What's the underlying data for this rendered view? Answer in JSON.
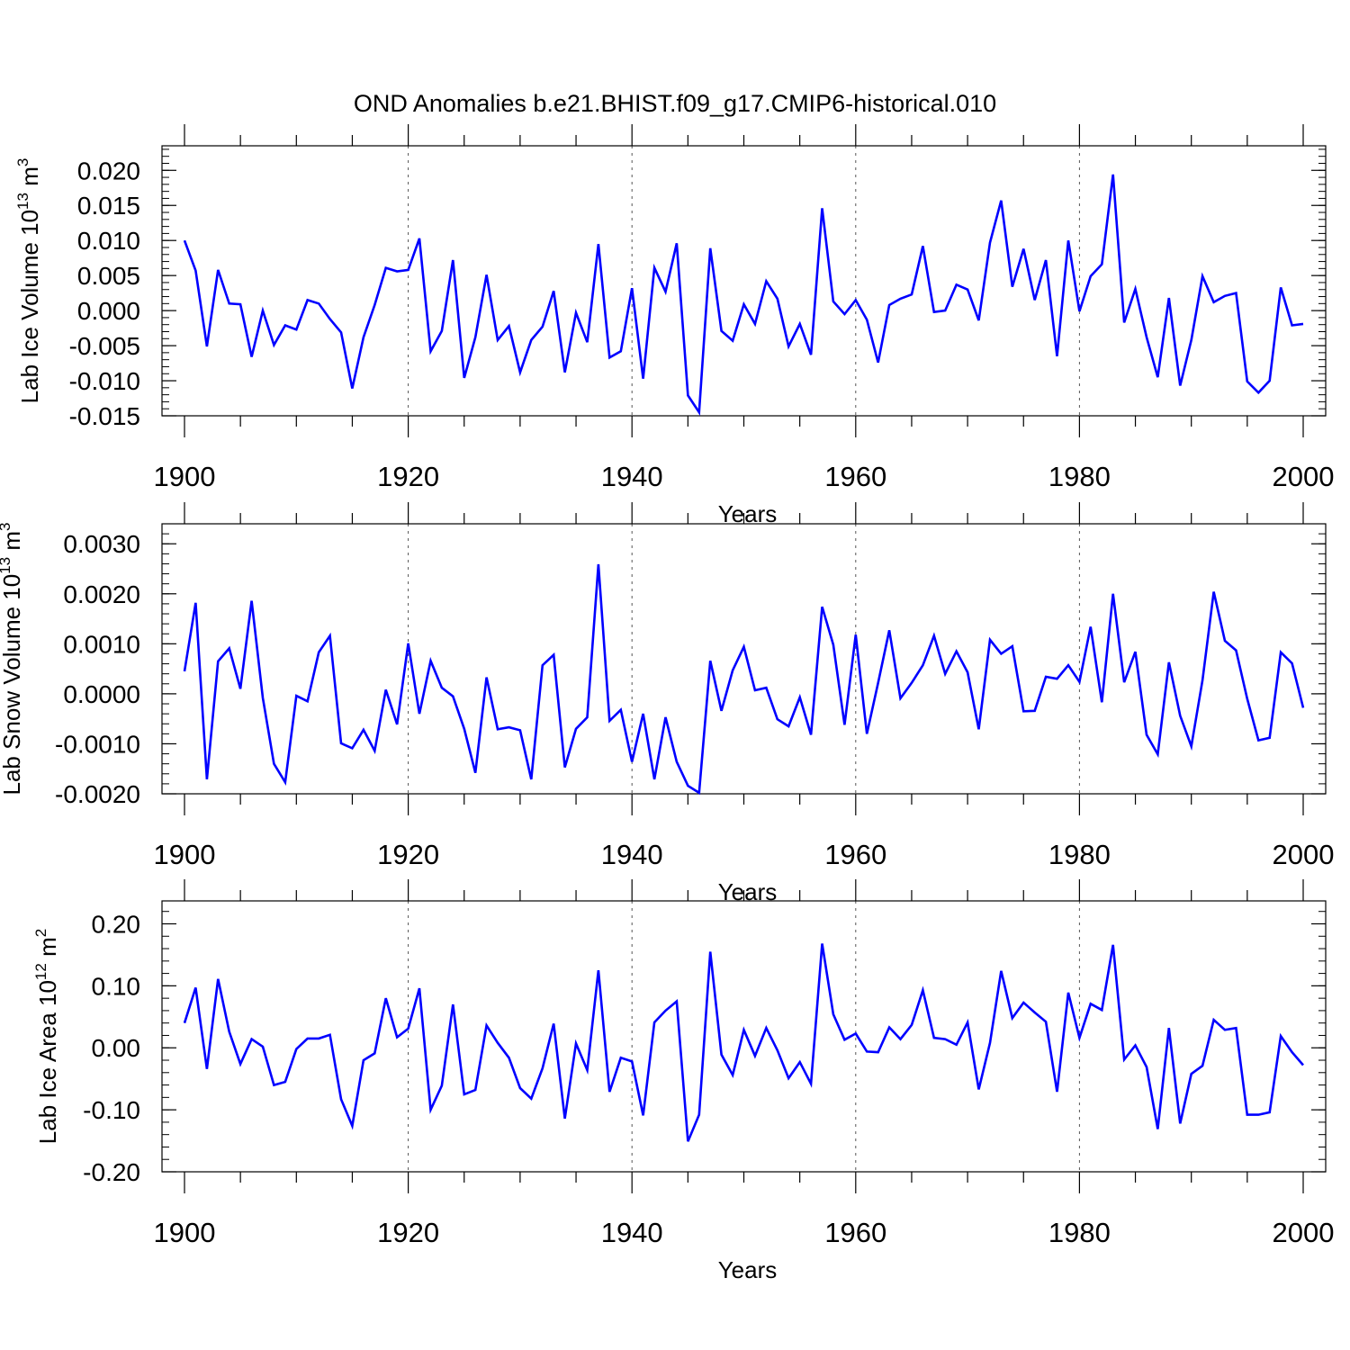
{
  "title": "OND Anomalies b.e21.BHIST.f09_g17.CMIP6-historical.010",
  "colors": {
    "line": "#0000ff",
    "axis": "#000000",
    "grid": "#555555"
  },
  "chart_data": [
    {
      "type": "line",
      "ylabel": {
        "main": "Lab Ice Volume 10",
        "exp": "13",
        "unit": " m",
        "unit_exp": "3"
      },
      "xlabel": "Years",
      "xlim": [
        1900,
        2000
      ],
      "ylim": [
        -0.015,
        0.0235
      ],
      "yticks": [
        -0.015,
        -0.01,
        -0.005,
        0.0,
        0.005,
        0.01,
        0.015,
        0.02
      ],
      "ytick_labels": [
        "-0.015",
        "-0.010",
        "-0.005",
        "0.000",
        "0.005",
        "0.010",
        "0.015",
        "0.020"
      ],
      "xticks": [
        1900,
        1920,
        1940,
        1960,
        1980,
        2000
      ],
      "xtick_labels": [
        "1900",
        "1920",
        "1940",
        "1960",
        "1980",
        "2000"
      ],
      "grid_x": [
        1920,
        1940,
        1960,
        1980
      ],
      "x_start": 1900,
      "values": [
        0.01,
        0.0057,
        -0.0051,
        0.0058,
        0.001,
        0.0009,
        -0.0066,
        0.0,
        -0.0049,
        -0.0021,
        -0.0027,
        0.0015,
        0.001,
        -0.0012,
        -0.0031,
        -0.0111,
        -0.0038,
        0.0008,
        0.0061,
        0.0056,
        0.0058,
        0.0103,
        -0.0058,
        -0.0029,
        0.0072,
        -0.0096,
        -0.0038,
        0.0051,
        -0.0042,
        -0.0022,
        -0.0088,
        -0.0042,
        -0.0023,
        0.0028,
        -0.0088,
        -0.0003,
        -0.0045,
        0.0095,
        -0.0067,
        -0.0058,
        0.0032,
        -0.0097,
        0.0061,
        0.0027,
        0.0096,
        -0.0121,
        -0.0145,
        0.0089,
        -0.0029,
        -0.0043,
        0.0009,
        -0.0019,
        0.0042,
        0.0017,
        -0.0051,
        -0.0019,
        -0.0063,
        0.0146,
        0.0013,
        -0.0005,
        0.0015,
        -0.0013,
        -0.0074,
        0.0008,
        0.0017,
        0.0023,
        0.0092,
        -0.0002,
        0.0,
        0.0037,
        0.003,
        -0.0014,
        0.0097,
        0.0157,
        0.0034,
        0.0088,
        0.0015,
        0.0072,
        -0.0065,
        0.01,
        -0.0001,
        0.0049,
        0.0066,
        0.0194,
        -0.0017,
        0.0031,
        -0.0038,
        -0.0095,
        0.0018,
        -0.0107,
        -0.0042,
        0.0049,
        0.0012,
        0.0021,
        0.0025,
        -0.0101,
        -0.0117,
        -0.01,
        0.0033,
        -0.0021,
        -0.0019
      ]
    },
    {
      "type": "line",
      "ylabel": {
        "main": "Lab Snow Volume 10",
        "exp": "13",
        "unit": " m",
        "unit_exp": "3"
      },
      "xlabel": "Years",
      "xlim": [
        1900,
        2000
      ],
      "ylim": [
        -0.002,
        0.0034
      ],
      "yticks": [
        -0.002,
        -0.001,
        0.0,
        0.001,
        0.002,
        0.003
      ],
      "ytick_labels": [
        "-0.0020",
        "-0.0010",
        "0.0000",
        "0.0010",
        "0.0020",
        "0.0030"
      ],
      "xticks": [
        1900,
        1920,
        1940,
        1960,
        1980,
        2000
      ],
      "xtick_labels": [
        "1900",
        "1920",
        "1940",
        "1960",
        "1980",
        "2000"
      ],
      "grid_x": [
        1920,
        1940,
        1960,
        1980
      ],
      "x_start": 1900,
      "values": [
        0.00045,
        0.00182,
        -0.00171,
        0.00065,
        0.00091,
        0.0001,
        0.00186,
        -8e-05,
        -0.0014,
        -0.00177,
        -4e-05,
        -0.00015,
        0.00083,
        0.00116,
        -0.00099,
        -0.00109,
        -0.00072,
        -0.00114,
        8e-05,
        -0.00061,
        0.00101,
        -0.0004,
        0.00066,
        0.00012,
        -5e-05,
        -0.0007,
        -0.00158,
        0.00033,
        -0.00071,
        -0.00067,
        -0.00073,
        -0.00171,
        0.00057,
        0.00078,
        -0.00147,
        -0.0007,
        -0.00047,
        0.00259,
        -0.00054,
        -0.00032,
        -0.00136,
        -0.0004,
        -0.00171,
        -0.00047,
        -0.00136,
        -0.00184,
        -0.00198,
        0.00066,
        -0.00034,
        0.00047,
        0.00094,
        7e-05,
        0.00012,
        -0.00051,
        -0.00065,
        -7e-05,
        -0.00082,
        0.00174,
        0.00098,
        -0.00062,
        0.00118,
        -0.0008,
        0.00022,
        0.00127,
        -9e-05,
        0.00022,
        0.00057,
        0.00116,
        0.0004,
        0.00085,
        0.00043,
        -0.00071,
        0.00108,
        0.0008,
        0.00095,
        -0.00035,
        -0.00034,
        0.00034,
        0.0003,
        0.00057,
        0.00024,
        0.00134,
        -0.00017,
        0.002,
        0.00023,
        0.00084,
        -0.00082,
        -0.00121,
        0.00063,
        -0.00044,
        -0.00105,
        0.00027,
        0.00204,
        0.00106,
        0.00087,
        -0.0001,
        -0.00093,
        -0.00088,
        0.00083,
        0.00061,
        -0.00028
      ]
    },
    {
      "type": "line",
      "ylabel": {
        "main": "Lab Ice Area 10",
        "exp": "12",
        "unit": " m",
        "unit_exp": "2"
      },
      "xlabel": "Years",
      "xlim": [
        1900,
        2000
      ],
      "ylim": [
        -0.2,
        0.237
      ],
      "yticks": [
        -0.2,
        -0.1,
        0.0,
        0.1,
        0.2
      ],
      "ytick_labels": [
        "-0.20",
        "-0.10",
        "0.00",
        "0.10",
        "0.20"
      ],
      "xticks": [
        1900,
        1920,
        1940,
        1960,
        1980,
        2000
      ],
      "xtick_labels": [
        "1900",
        "1920",
        "1940",
        "1960",
        "1980",
        "2000"
      ],
      "grid_x": [
        1920,
        1940,
        1960,
        1980
      ],
      "x_start": 1900,
      "values": [
        0.04,
        0.097,
        -0.034,
        0.111,
        0.026,
        -0.026,
        0.014,
        0.002,
        -0.06,
        -0.055,
        -0.002,
        0.015,
        0.015,
        0.021,
        -0.083,
        -0.126,
        -0.02,
        -0.009,
        0.08,
        0.017,
        0.031,
        0.096,
        -0.1,
        -0.061,
        0.07,
        -0.075,
        -0.068,
        0.036,
        0.008,
        -0.016,
        -0.065,
        -0.082,
        -0.033,
        0.039,
        -0.114,
        0.007,
        -0.036,
        0.125,
        -0.071,
        -0.016,
        -0.022,
        -0.109,
        0.041,
        0.06,
        0.075,
        -0.151,
        -0.108,
        0.155,
        -0.011,
        -0.044,
        0.029,
        -0.013,
        0.032,
        -0.004,
        -0.049,
        -0.023,
        -0.058,
        0.168,
        0.054,
        0.013,
        0.023,
        -0.006,
        -0.007,
        0.033,
        0.014,
        0.037,
        0.093,
        0.016,
        0.014,
        0.005,
        0.041,
        -0.067,
        0.008,
        0.124,
        0.048,
        0.073,
        0.057,
        0.042,
        -0.071,
        0.089,
        0.016,
        0.071,
        0.061,
        0.166,
        -0.019,
        0.004,
        -0.031,
        -0.131,
        0.032,
        -0.122,
        -0.042,
        -0.029,
        0.045,
        0.029,
        0.032,
        -0.108,
        -0.108,
        -0.104,
        0.019,
        -0.007,
        -0.028
      ]
    }
  ]
}
